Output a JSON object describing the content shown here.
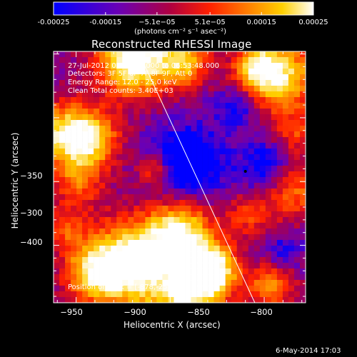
{
  "colorbar": {
    "ticks": [
      "-0.00025",
      "-0.00015",
      "−5.1e−05",
      "5.1e−05",
      "0.00015",
      "0.00025"
    ],
    "tick_values": [
      -0.00025,
      -0.00015,
      -5.1e-05,
      5.1e-05,
      0.00015,
      0.00025
    ],
    "units": "(photons cm⁻² s⁻¹ asec⁻²)"
  },
  "chart_data": {
    "type": "heatmap",
    "title": "Reconstructed RHESSI Image",
    "xlabel": "Heliocentric X (arcsec)",
    "ylabel": "Heliocentric Y (arcsec)",
    "xlim": [
      -962,
      -828
    ],
    "ylim": [
      -445,
      -248
    ],
    "xticks": [
      -950,
      -900,
      -850,
      -800
    ],
    "yticks": [
      -300,
      -350,
      -400
    ],
    "xtick_labels": [
      "−950",
      "−900",
      "−850",
      "−800"
    ],
    "ytick_labels": [
      "−300",
      "−350",
      "−400"
    ],
    "zlim": [
      -0.00025,
      0.00025
    ],
    "colormap": [
      "#0000ff",
      "#6a00b5",
      "#b00040",
      "#ff2000",
      "#ff8000",
      "#ffd000",
      "#ffffff"
    ],
    "limb_line": [
      [
        -917,
        -248
      ],
      [
        -855,
        -445
      ]
    ],
    "peak_marker": [
      -878,
      -252
    ],
    "info_lines": [
      "27-Jul-2012 06:50:40.000 to 06:53:48.000",
      "Detectors: 3F 5F 6F 7F 8F 9F, Att 0",
      "Energy Range: 12.0 - 25.0 keV",
      "Clean     Total counts: 3.40E+03"
    ],
    "peak_text": "Position of Peak = [-878,-252]"
  },
  "footer": "6-May-2014 17:03"
}
